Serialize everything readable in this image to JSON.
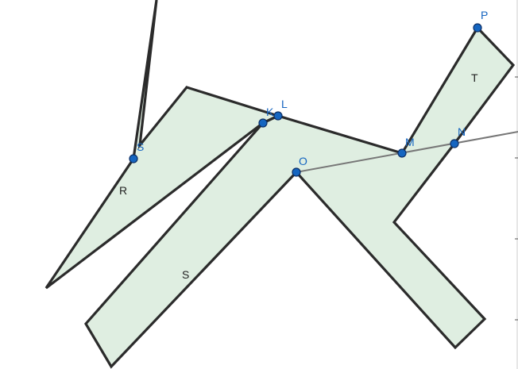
{
  "diagram": {
    "colors": {
      "fill": "#dfeee1",
      "stroke": "#2b2b2b",
      "point": "#1565c0",
      "ray": "#777777"
    },
    "regions": [
      {
        "id": "R",
        "label": "R"
      },
      {
        "id": "S",
        "label": "S"
      },
      {
        "id": "T",
        "label": "T"
      }
    ],
    "points": [
      {
        "id": "K",
        "label": "K"
      },
      {
        "id": "L",
        "label": "L"
      },
      {
        "id": "M",
        "label": "M"
      },
      {
        "id": "N",
        "label": "N"
      },
      {
        "id": "O",
        "label": "O"
      },
      {
        "id": "P",
        "label": "P"
      },
      {
        "id": "S",
        "label": "S"
      }
    ]
  }
}
